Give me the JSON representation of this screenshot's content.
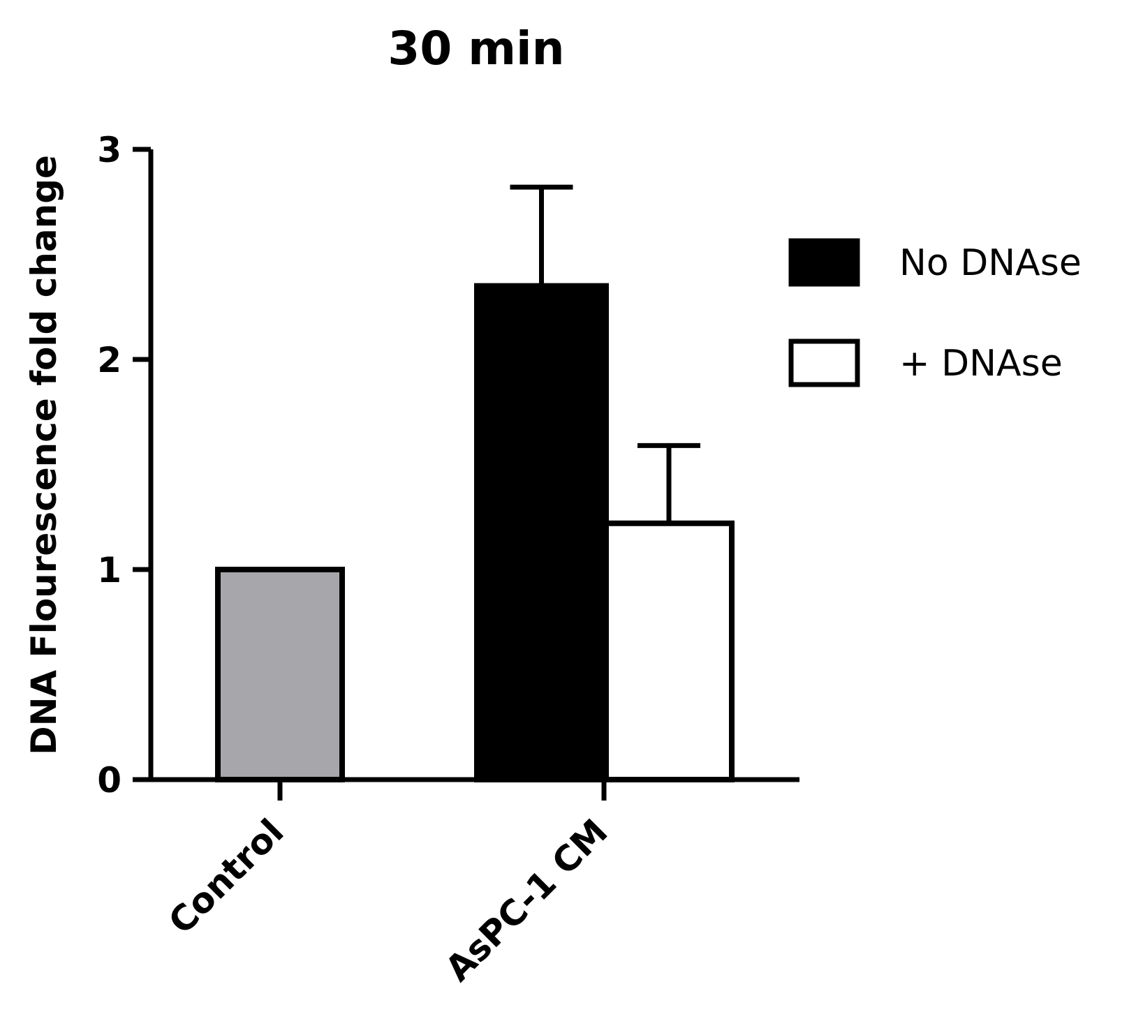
{
  "chart_data": {
    "type": "bar",
    "title": "30 min",
    "xlabel": "",
    "ylabel": "DNA Flourescence fold change",
    "ylim": [
      0,
      3
    ],
    "yticks": [
      "0",
      "1",
      "2",
      "3"
    ],
    "grid": false,
    "legend_position": "right",
    "categories": [
      "Control",
      "AsPC-1 CM"
    ],
    "bars": [
      {
        "category": "Control",
        "series": "",
        "value": 1.0,
        "error": 0,
        "color": "#a7a6aa"
      },
      {
        "category": "AsPC-1 CM",
        "series": "No DNAse",
        "value": 2.35,
        "error": 0.47,
        "color": "#000000"
      },
      {
        "category": "AsPC-1 CM",
        "series": "+ DNAse",
        "value": 1.22,
        "error": 0.37,
        "color": "#ffffff"
      }
    ],
    "legend": [
      {
        "label": "No DNAse",
        "color": "#000000"
      },
      {
        "label": "+ DNAse",
        "color": "#ffffff"
      }
    ]
  }
}
